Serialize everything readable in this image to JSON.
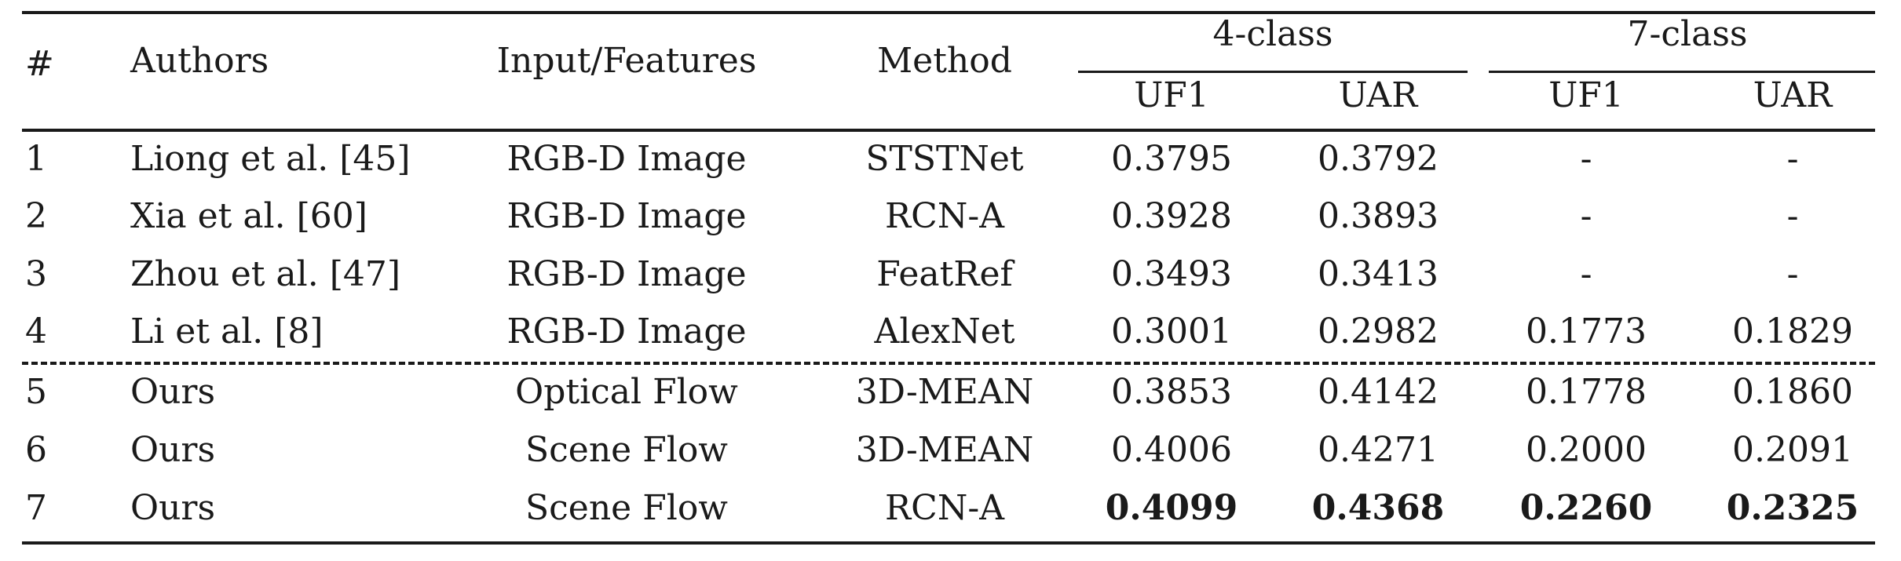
{
  "table": {
    "header": {
      "index": "#",
      "authors": "Authors",
      "input_features": "Input/Features",
      "method": "Method",
      "group_4class": "4-class",
      "group_7class": "7-class",
      "uf1_4": "UF1",
      "uar_4": "UAR",
      "uf1_7": "UF1",
      "uar_7": "UAR"
    },
    "rows": [
      {
        "index": "1",
        "authors": "Liong et al. [45]",
        "input": "RGB-D Image",
        "method": "STSTNet",
        "uf1_4": "0.3795",
        "uar_4": "0.3792",
        "uf1_7": "-",
        "uar_7": "-"
      },
      {
        "index": "2",
        "authors": "Xia et al. [60]",
        "input": "RGB-D Image",
        "method": "RCN-A",
        "uf1_4": "0.3928",
        "uar_4": "0.3893",
        "uf1_7": "-",
        "uar_7": "-"
      },
      {
        "index": "3",
        "authors": "Zhou et al. [47]",
        "input": "RGB-D Image",
        "method": "FeatRef",
        "uf1_4": "0.3493",
        "uar_4": "0.3413",
        "uf1_7": "-",
        "uar_7": "-"
      },
      {
        "index": "4",
        "authors": "Li et al. [8]",
        "input": "RGB-D Image",
        "method": "AlexNet",
        "uf1_4": "0.3001",
        "uar_4": "0.2982",
        "uf1_7": "0.1773",
        "uar_7": "0.1829"
      },
      {
        "index": "5",
        "authors": "Ours",
        "input": "Optical Flow",
        "method": "3D-MEAN",
        "uf1_4": "0.3853",
        "uar_4": "0.4142",
        "uf1_7": "0.1778",
        "uar_7": "0.1860"
      },
      {
        "index": "6",
        "authors": "Ours",
        "input": "Scene Flow",
        "method": "3D-MEAN",
        "uf1_4": "0.4006",
        "uar_4": "0.4271",
        "uf1_7": "0.2000",
        "uar_7": "0.2091"
      },
      {
        "index": "7",
        "authors": "Ours",
        "input": "Scene Flow",
        "method": "RCN-A",
        "uf1_4": "0.4099",
        "uar_4": "0.4368",
        "uf1_7": "0.2260",
        "uar_7": "0.2325",
        "bold_metrics": true
      }
    ]
  }
}
